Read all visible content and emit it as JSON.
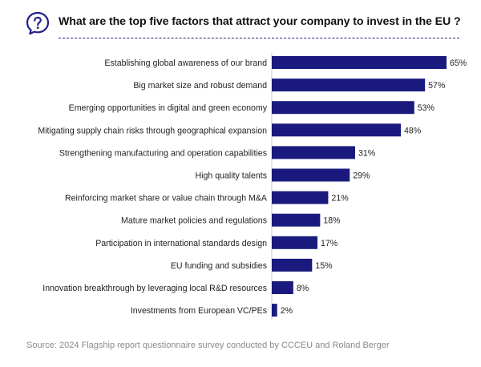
{
  "header": {
    "icon": "question-mark-icon",
    "title": "What are the top five factors that attract your company to invest in the EU ?"
  },
  "chart_data": {
    "type": "bar",
    "orientation": "horizontal",
    "categories": [
      "Establishing global awareness of our brand",
      "Big market size and robust demand",
      "Emerging opportunities in digital and green economy",
      "Mitigating supply chain risks through geographical expansion",
      "Strengthening manufacturing and operation capabilities",
      "High quality talents",
      "Reinforcing market share or value chain through M&A",
      "Mature market policies and regulations",
      "Participation in international standards design",
      "EU funding and subsidies",
      "Innovation breakthrough by leveraging local R&D resources",
      "Investments from European VC/PEs"
    ],
    "values": [
      65,
      57,
      53,
      48,
      31,
      29,
      21,
      18,
      17,
      15,
      8,
      2
    ],
    "value_labels": [
      "65%",
      "57%",
      "53%",
      "48%",
      "31%",
      "29%",
      "21%",
      "18%",
      "17%",
      "15%",
      "8%",
      "2%"
    ],
    "unit": "%",
    "grid": false,
    "bar_color": "#1a1a7e",
    "baseline_color": "#c9c9c9"
  },
  "footer": {
    "source": "Source: 2024 Flagship report questionnaire survey conducted by CCCEU and Roland Berger"
  },
  "colors": {
    "accent": "#22208a",
    "text": "#1a1a1a",
    "muted": "#8a8a8a"
  }
}
